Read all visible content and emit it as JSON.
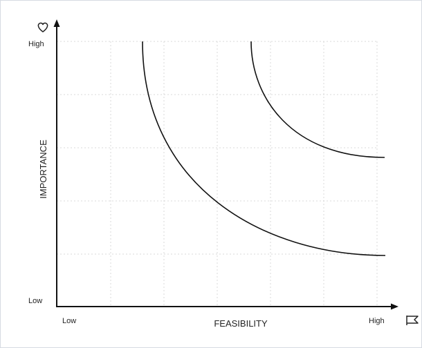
{
  "diagram": {
    "y_axis": {
      "label": "IMPORTANCE",
      "low_label": "Low",
      "high_label": "High",
      "icon": "heart-icon"
    },
    "x_axis": {
      "label": "FEASIBILITY",
      "low_label": "Low",
      "high_label": "High",
      "icon": "flag-icon"
    },
    "curves": [
      {
        "name": "lower-curve"
      },
      {
        "name": "upper-curve"
      }
    ],
    "colors": {
      "axis": "#111111",
      "curve": "#111111",
      "grid": "#d9d9d9",
      "border": "#d6dbe2"
    }
  }
}
